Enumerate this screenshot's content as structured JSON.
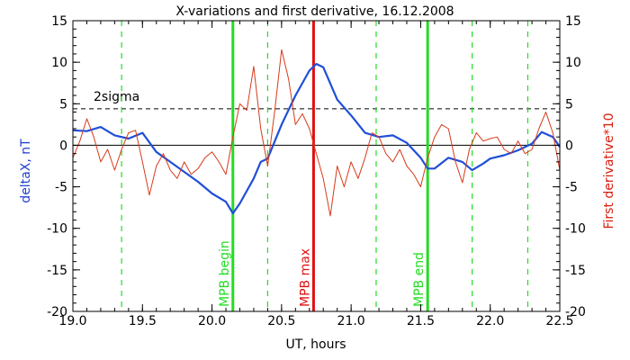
{
  "chart_data": {
    "type": "line",
    "title": "X-variations and first derivative, 16.12.2008",
    "xlabel": "UT, hours",
    "ylabel_left": "deltaX, nT",
    "ylabel_right": "First derivative*10",
    "xlim": [
      19.0,
      22.5
    ],
    "ylim": [
      -20,
      15
    ],
    "x_ticks": [
      "19.0",
      "19.5",
      "20.0",
      "20.5",
      "21.0",
      "21.5",
      "22.0",
      "22.5"
    ],
    "y_ticks_left": [
      "15",
      "10",
      "5",
      "0",
      "-5",
      "-10",
      "-15",
      "-20"
    ],
    "y_ticks_right": [
      "15",
      "10",
      "5",
      "0",
      "-5",
      "-10",
      "-15",
      "-20"
    ],
    "sigma_level": 4.4,
    "sigma_label": "2sigma",
    "colors": {
      "deltax": "#1f4fd8",
      "derivative": "#d83a1a",
      "markers": "#22dd22",
      "max_marker": "#e01010"
    },
    "markers": [
      {
        "x": 20.15,
        "label": "MPB begin",
        "kind": "solid-green"
      },
      {
        "x": 20.73,
        "label": "MPB max",
        "kind": "solid-red"
      },
      {
        "x": 21.55,
        "label": "MPB end",
        "kind": "solid-green"
      }
    ],
    "dashed_lines": [
      19.35,
      20.4,
      21.18,
      21.87,
      22.27
    ],
    "series": [
      {
        "name": "deltaX",
        "axis": "left",
        "x": [
          19.0,
          19.1,
          19.2,
          19.3,
          19.4,
          19.5,
          19.6,
          19.7,
          19.8,
          19.9,
          20.0,
          20.1,
          20.15,
          20.2,
          20.3,
          20.35,
          20.4,
          20.5,
          20.6,
          20.7,
          20.75,
          20.8,
          20.9,
          21.0,
          21.1,
          21.2,
          21.3,
          21.4,
          21.5,
          21.55,
          21.6,
          21.7,
          21.8,
          21.87,
          21.95,
          22.0,
          22.1,
          22.2,
          22.3,
          22.37,
          22.45,
          22.5
        ],
        "values": [
          1.8,
          1.7,
          2.2,
          1.2,
          0.8,
          1.5,
          -0.8,
          -2.0,
          -3.2,
          -4.4,
          -5.8,
          -6.8,
          -8.2,
          -7.0,
          -4.0,
          -2.0,
          -1.6,
          2.5,
          6.0,
          9.0,
          9.8,
          9.4,
          5.5,
          3.6,
          1.5,
          1.0,
          1.2,
          0.3,
          -1.5,
          -2.8,
          -2.8,
          -1.5,
          -2.0,
          -3.0,
          -2.2,
          -1.6,
          -1.2,
          -0.6,
          0.2,
          1.6,
          1.0,
          -0.2
        ]
      },
      {
        "name": "First derivative*10",
        "axis": "right",
        "x": [
          19.0,
          19.05,
          19.1,
          19.15,
          19.2,
          19.25,
          19.3,
          19.35,
          19.4,
          19.45,
          19.5,
          19.55,
          19.6,
          19.65,
          19.7,
          19.75,
          19.8,
          19.85,
          19.9,
          19.95,
          20.0,
          20.05,
          20.1,
          20.15,
          20.2,
          20.25,
          20.3,
          20.35,
          20.4,
          20.45,
          20.5,
          20.55,
          20.6,
          20.65,
          20.7,
          20.75,
          20.8,
          20.85,
          20.9,
          20.95,
          21.0,
          21.05,
          21.1,
          21.15,
          21.2,
          21.25,
          21.3,
          21.35,
          21.4,
          21.45,
          21.5,
          21.55,
          21.6,
          21.65,
          21.7,
          21.75,
          21.8,
          21.85,
          21.9,
          21.95,
          22.0,
          22.05,
          22.1,
          22.15,
          22.2,
          22.25,
          22.3,
          22.35,
          22.4,
          22.45,
          22.5
        ],
        "values": [
          -1.5,
          0.5,
          3.2,
          1.0,
          -2.0,
          -0.5,
          -3.0,
          -0.5,
          1.5,
          1.8,
          -2.0,
          -6.0,
          -2.5,
          -1.0,
          -3.0,
          -4.0,
          -2.0,
          -3.5,
          -2.8,
          -1.5,
          -0.8,
          -2.0,
          -3.5,
          1.0,
          5.0,
          4.2,
          9.5,
          2.0,
          -2.5,
          4.0,
          11.5,
          8.0,
          2.5,
          3.8,
          2.0,
          -1.0,
          -4.0,
          -8.5,
          -2.5,
          -5.0,
          -2.0,
          -4.0,
          -1.5,
          1.5,
          1.0,
          -1.0,
          -2.0,
          -0.5,
          -2.5,
          -3.5,
          -5.0,
          -1.5,
          1.0,
          2.5,
          2.0,
          -2.0,
          -4.5,
          -0.5,
          1.5,
          0.5,
          0.8,
          1.0,
          -0.5,
          -1.0,
          0.5,
          -1.0,
          -0.5,
          2.0,
          4.0,
          1.5,
          -3.0
        ]
      }
    ]
  }
}
